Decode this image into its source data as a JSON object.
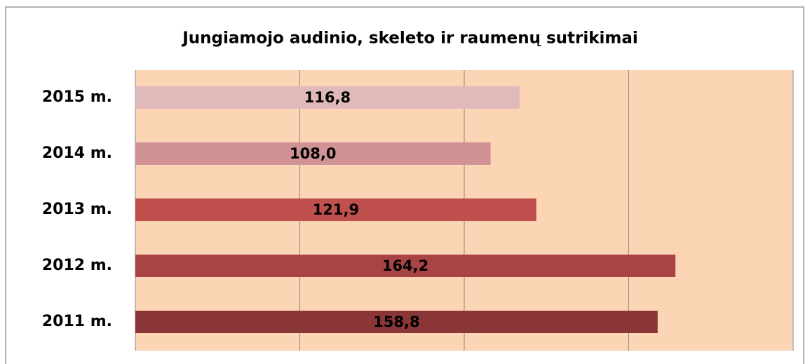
{
  "chart_data": {
    "type": "barh",
    "title": "Jungiamojo audinio, skeleto ir raumenų sutrikimai",
    "categories": [
      "2015 m.",
      "2014 m.",
      "2013 m.",
      "2012 m.",
      "2011 m."
    ],
    "values": [
      116.8,
      108.0,
      121.9,
      164.2,
      158.8
    ],
    "value_labels": [
      "116,8",
      "108,0",
      "121,9",
      "164,2",
      "158,8"
    ],
    "colors": [
      "#e0b9bb",
      "#d09294",
      "#c0504d",
      "#a84444",
      "#8b3636"
    ],
    "xlim": [
      0,
      200
    ],
    "xticks": [
      0,
      50,
      100,
      150,
      200
    ],
    "grid": true
  }
}
